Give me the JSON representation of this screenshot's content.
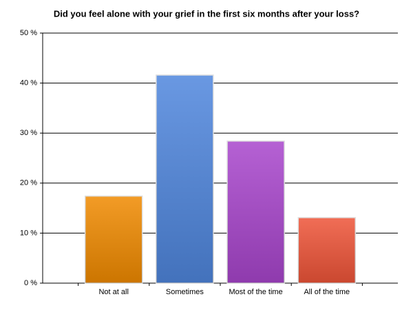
{
  "chart_data": {
    "type": "bar",
    "title": "Did you feel alone with your grief in the first six months after your loss?",
    "categories": [
      "Not at all",
      "Sometimes",
      "Most of the time",
      "All of the time"
    ],
    "values": [
      17.4,
      41.6,
      28.4,
      13.1
    ],
    "colors": [
      "#f08a00",
      "#4f86dd",
      "#a845cc",
      "#ee5438"
    ],
    "ylim": [
      0,
      50
    ],
    "yticks": [
      {
        "value": 0,
        "label": "0 %"
      },
      {
        "value": 10,
        "label": "10 %"
      },
      {
        "value": 20,
        "label": "20 %"
      },
      {
        "value": 30,
        "label": "30 %"
      },
      {
        "value": 40,
        "label": "40 %"
      },
      {
        "value": 50,
        "label": "50 %"
      }
    ],
    "grid": true
  }
}
